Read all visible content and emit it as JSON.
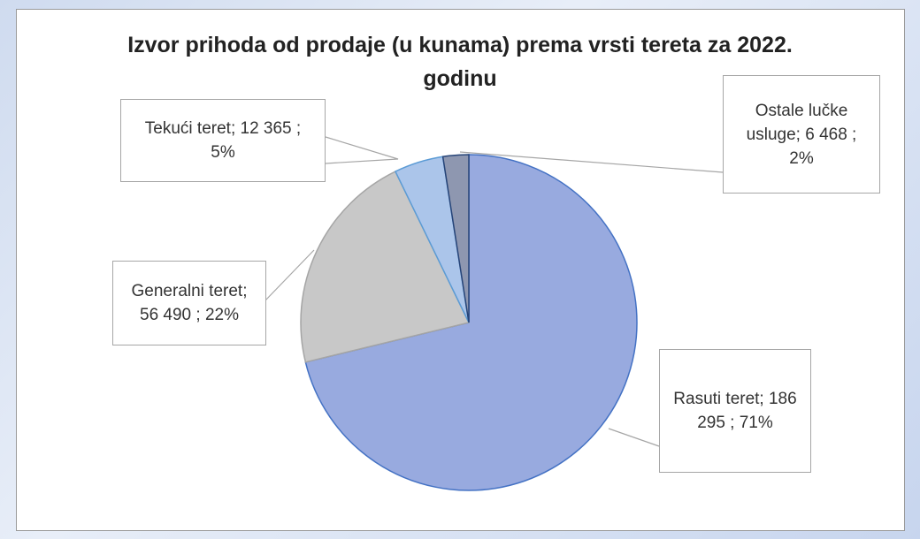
{
  "chart_data": {
    "type": "pie",
    "title": "Izvor prihoda od prodaje (u kunama) prema vrsti tereta za 2022. godinu",
    "labels": [
      "Rasuti teret; 186 295 ; 71%",
      "Generalni teret; 56 490 ; 22%",
      "Tekući teret;  12 365 ; 5%",
      "Ostale lučke usluge;  6 468 ; 2%"
    ],
    "values": [
      186295,
      56490,
      12365,
      6468
    ],
    "colors": [
      "#98aadf",
      "#c8c8c8",
      "#abc5ea",
      "#8e97b0"
    ],
    "strokes": [
      "#4472c4",
      "#a5a5a5",
      "#5b9bd5",
      "#264478"
    ]
  }
}
